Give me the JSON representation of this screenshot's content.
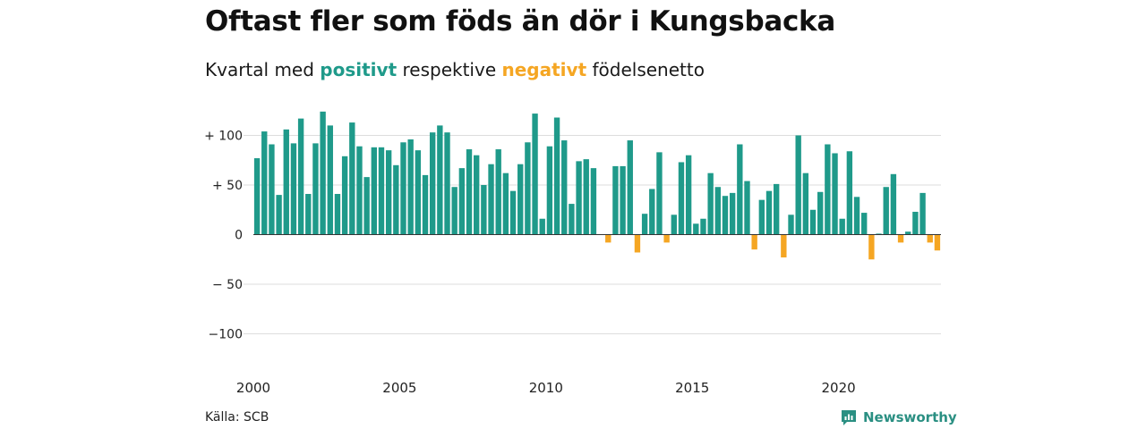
{
  "title": "Oftast fler som föds än dör i Kungsbacka",
  "subtitle": {
    "prefix": "Kvartal med",
    "positive_word": "positivt",
    "middle": "respektive",
    "negative_word": "negativt",
    "suffix": "födelsenetto"
  },
  "source": "Källa: SCB",
  "brand": "Newsworthy",
  "colors": {
    "positive": "#1f9a8a",
    "negative": "#f5a623",
    "grid": "#dddddd",
    "zero_line": "#333333",
    "brand": "#2a8f82"
  },
  "chart_data": {
    "type": "bar",
    "x_start": "2000 Q1",
    "x_ticks": [
      {
        "value": 2000,
        "label": "2000"
      },
      {
        "value": 2005,
        "label": "2005"
      },
      {
        "value": 2010,
        "label": "2010"
      },
      {
        "value": 2015,
        "label": "2015"
      },
      {
        "value": 2020,
        "label": "2020"
      }
    ],
    "y_ticks": [
      {
        "value": 100,
        "label": "+ 100"
      },
      {
        "value": 50,
        "label": "+  50"
      },
      {
        "value": 0,
        "label": "0"
      },
      {
        "value": -50,
        "label": "− 50"
      },
      {
        "value": -100,
        "label": "−100"
      }
    ],
    "ylim": [
      -100,
      125
    ],
    "grid": true,
    "series": [
      {
        "values": [
          77,
          104,
          91,
          40,
          106,
          92,
          117,
          41,
          92,
          124,
          110,
          41,
          79,
          113,
          89,
          58,
          88,
          88,
          85,
          70,
          93,
          96,
          85,
          60,
          103,
          110,
          103,
          48,
          67,
          86,
          80,
          50,
          71,
          86,
          62,
          44,
          71,
          93,
          122,
          16,
          89,
          118,
          95,
          31,
          74,
          76,
          67,
          0,
          -8,
          69,
          69,
          95,
          -18,
          21,
          46,
          83,
          -8,
          20,
          73,
          80,
          11,
          16,
          62,
          48,
          39,
          42,
          91,
          54,
          -15,
          35,
          44,
          51,
          -23,
          20,
          100,
          62,
          25,
          43,
          91,
          82,
          16,
          84,
          38,
          22,
          -25,
          1,
          48,
          61,
          -8,
          3,
          23,
          42,
          -8,
          -16
        ]
      }
    ]
  }
}
